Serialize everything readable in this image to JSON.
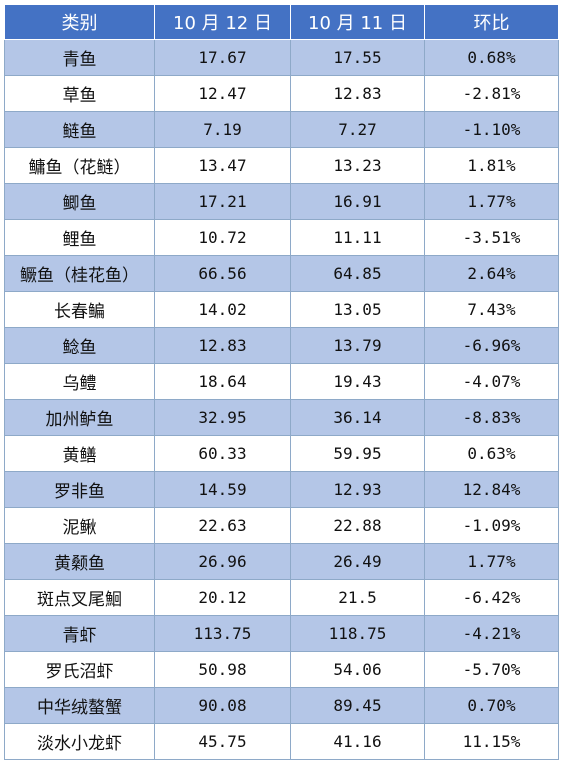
{
  "table": {
    "headers": [
      "类别",
      "10 月 12 日",
      "10 月 11 日",
      "环比"
    ],
    "rows": [
      {
        "name": "青鱼",
        "oct12": "17.67",
        "oct11": "17.55",
        "change": "0.68%"
      },
      {
        "name": "草鱼",
        "oct12": "12.47",
        "oct11": "12.83",
        "change": "-2.81%"
      },
      {
        "name": "鲢鱼",
        "oct12": "7.19",
        "oct11": "7.27",
        "change": "-1.10%"
      },
      {
        "name": "鳙鱼（花鲢）",
        "oct12": "13.47",
        "oct11": "13.23",
        "change": "1.81%"
      },
      {
        "name": "鲫鱼",
        "oct12": "17.21",
        "oct11": "16.91",
        "change": "1.77%"
      },
      {
        "name": "鲤鱼",
        "oct12": "10.72",
        "oct11": "11.11",
        "change": "-3.51%"
      },
      {
        "name": "鳜鱼（桂花鱼）",
        "oct12": "66.56",
        "oct11": "64.85",
        "change": "2.64%"
      },
      {
        "name": "长春鳊",
        "oct12": "14.02",
        "oct11": "13.05",
        "change": "7.43%"
      },
      {
        "name": "鲶鱼",
        "oct12": "12.83",
        "oct11": "13.79",
        "change": "-6.96%"
      },
      {
        "name": "乌鳢",
        "oct12": "18.64",
        "oct11": "19.43",
        "change": "-4.07%"
      },
      {
        "name": "加州鲈鱼",
        "oct12": "32.95",
        "oct11": "36.14",
        "change": "-8.83%"
      },
      {
        "name": "黄鳝",
        "oct12": "60.33",
        "oct11": "59.95",
        "change": "0.63%"
      },
      {
        "name": "罗非鱼",
        "oct12": "14.59",
        "oct11": "12.93",
        "change": "12.84%"
      },
      {
        "name": "泥鳅",
        "oct12": "22.63",
        "oct11": "22.88",
        "change": "-1.09%"
      },
      {
        "name": "黄颡鱼",
        "oct12": "26.96",
        "oct11": "26.49",
        "change": "1.77%"
      },
      {
        "name": "斑点叉尾鮰",
        "oct12": "20.12",
        "oct11": "21.5",
        "change": "-6.42%"
      },
      {
        "name": "青虾",
        "oct12": "113.75",
        "oct11": "118.75",
        "change": "-4.21%"
      },
      {
        "name": "罗氏沼虾",
        "oct12": "50.98",
        "oct11": "54.06",
        "change": "-5.70%"
      },
      {
        "name": "中华绒螯蟹",
        "oct12": "90.08",
        "oct11": "89.45",
        "change": "0.70%"
      },
      {
        "name": "淡水小龙虾",
        "oct12": "45.75",
        "oct11": "41.16",
        "change": "11.15%"
      }
    ]
  },
  "colors": {
    "header_bg": "#4472c4",
    "band_bg": "#b4c6e7",
    "plain_bg": "#ffffff"
  }
}
